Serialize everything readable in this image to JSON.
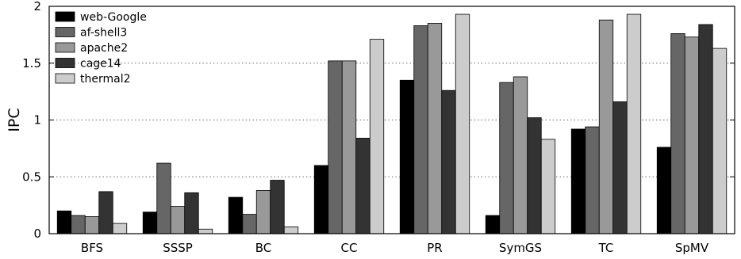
{
  "chart_data": {
    "type": "bar",
    "ylabel": "IPC",
    "xlabel": "",
    "title": "",
    "ylim": [
      0,
      2
    ],
    "yticks": [
      0,
      0.5,
      1,
      1.5,
      2
    ],
    "ytick_labels": [
      "0",
      "0.5",
      "1",
      "1.5",
      "2"
    ],
    "grid": "dotted horizontal",
    "legend_position": "top-left",
    "categories": [
      "BFS",
      "SSSP",
      "BC",
      "CC",
      "PR",
      "SymGS",
      "TC",
      "SpMV"
    ],
    "series": [
      {
        "name": "web-Google",
        "color": "#000000",
        "values": [
          0.2,
          0.19,
          0.32,
          0.6,
          1.35,
          0.16,
          0.92,
          0.76
        ]
      },
      {
        "name": "af-shell3",
        "color": "#666666",
        "values": [
          0.16,
          0.62,
          0.17,
          1.52,
          1.83,
          1.33,
          0.94,
          1.76
        ]
      },
      {
        "name": "apache2",
        "color": "#999999",
        "values": [
          0.15,
          0.24,
          0.38,
          1.52,
          1.85,
          1.38,
          1.88,
          1.73
        ]
      },
      {
        "name": "cage14",
        "color": "#333333",
        "values": [
          0.37,
          0.36,
          0.47,
          0.84,
          1.26,
          1.02,
          1.16,
          1.84
        ]
      },
      {
        "name": "thermal2",
        "color": "#cccccc",
        "values": [
          0.09,
          0.04,
          0.06,
          1.71,
          1.93,
          0.83,
          1.93,
          1.63
        ]
      }
    ]
  }
}
